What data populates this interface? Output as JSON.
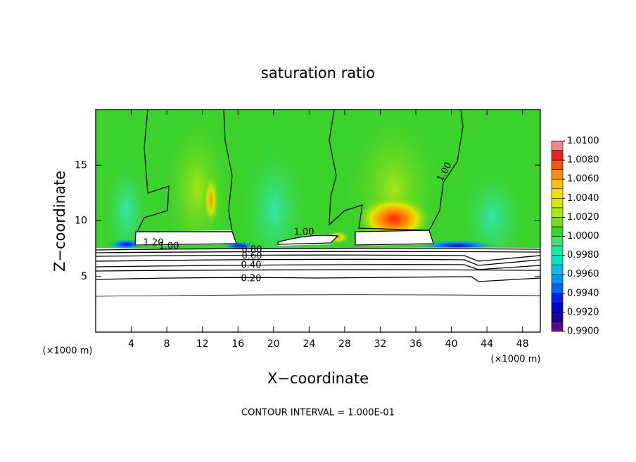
{
  "chart_data": {
    "type": "contour",
    "title": "saturation ratio",
    "x_label": "X−coordinate",
    "y_label": "Z−coordinate",
    "x_unit_label": "(×1000 m)",
    "y_unit_label": "(×1000 m)",
    "footer": "CONTOUR INTERVAL = 1.000E-01",
    "xlim": [
      0,
      50
    ],
    "ylim": [
      0,
      20
    ],
    "xticks": [
      4,
      8,
      12,
      16,
      20,
      24,
      28,
      32,
      36,
      40,
      44,
      48
    ],
    "yticks": [
      5,
      10,
      15
    ],
    "contour_labels": [
      "1.00",
      "1.00",
      "1.20",
      "1.00",
      "0.80",
      "0.60",
      "0.40",
      "0.20"
    ],
    "clim": [
      0.99,
      1.01
    ],
    "colorbar_colors": [
      "#5a0a8a",
      "#1a00a0",
      "#0000cc",
      "#0020ff",
      "#0064ff",
      "#0096ff",
      "#00c4e6",
      "#00e2c4",
      "#20e8a0",
      "#40e070",
      "#3cd22c",
      "#72de1e",
      "#a6e612",
      "#d4ea04",
      "#f4e000",
      "#ffc000",
      "#ff8e00",
      "#ff5400",
      "#f02020",
      "#f08888"
    ],
    "colorbar_ticks": [
      {
        "value": 0.99,
        "label": "0.9900"
      },
      {
        "value": 0.992,
        "label": "0.9920"
      },
      {
        "value": 0.994,
        "label": "0.9940"
      },
      {
        "value": 0.996,
        "label": "0.9960"
      },
      {
        "value": 0.998,
        "label": "0.9980"
      },
      {
        "value": 1.0,
        "label": "1.0000"
      },
      {
        "value": 1.002,
        "label": "1.0020"
      },
      {
        "value": 1.004,
        "label": "1.0040"
      },
      {
        "value": 1.006,
        "label": "1.0060"
      },
      {
        "value": 1.008,
        "label": "1.0080"
      },
      {
        "value": 1.01,
        "label": "1.0100"
      }
    ]
  }
}
